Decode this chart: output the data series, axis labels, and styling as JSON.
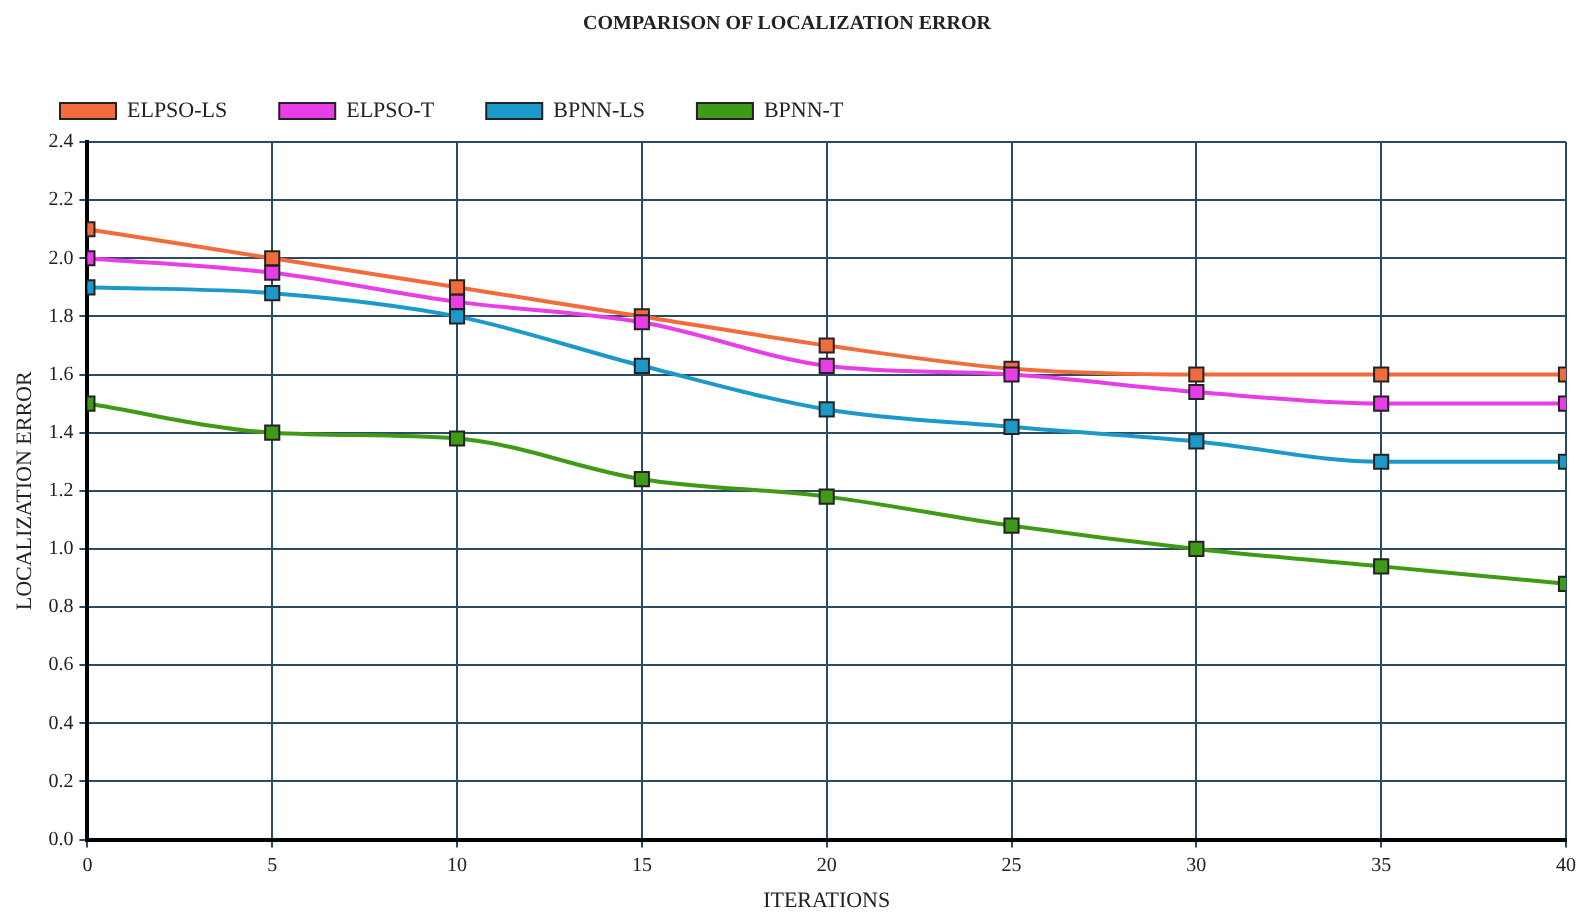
{
  "chart_data": {
    "type": "line",
    "title": "COMPARISON OF LOCALIZATION ERROR",
    "xlabel": "ITERATIONS",
    "ylabel": "LOCALIZATION ERROR",
    "x": [
      0,
      5,
      10,
      15,
      20,
      25,
      30,
      35,
      40
    ],
    "series": [
      {
        "name": "ELPSO-LS",
        "color": "#f26b3a",
        "values": [
          2.1,
          2.0,
          1.9,
          1.8,
          1.7,
          1.62,
          1.6,
          1.6,
          1.6
        ]
      },
      {
        "name": "ELPSO-T",
        "color": "#e83de8",
        "values": [
          2.0,
          1.95,
          1.85,
          1.78,
          1.63,
          1.6,
          1.54,
          1.5,
          1.5
        ]
      },
      {
        "name": "BPNN-LS",
        "color": "#1b9ac9",
        "values": [
          1.9,
          1.88,
          1.8,
          1.63,
          1.48,
          1.42,
          1.37,
          1.3,
          1.3
        ]
      },
      {
        "name": "BPNN-T",
        "color": "#3f9a16",
        "values": [
          1.5,
          1.4,
          1.38,
          1.24,
          1.18,
          1.08,
          1.0,
          0.94,
          0.88
        ]
      }
    ],
    "xlim": [
      0,
      40
    ],
    "xticks": [
      0,
      5,
      10,
      15,
      20,
      25,
      30,
      35,
      40
    ],
    "ylim": [
      0,
      2.4
    ],
    "yticks": [
      {
        "value": 0,
        "label": "0.0"
      },
      {
        "value": 0.2,
        "label": "0.2"
      },
      {
        "value": 0.4,
        "label": "0.4"
      },
      {
        "value": 0.6,
        "label": "0.6"
      },
      {
        "value": 0.8,
        "label": "0.8"
      },
      {
        "value": 1,
        "label": "1.0"
      },
      {
        "value": 1.2,
        "label": "1.2"
      },
      {
        "value": 1.4,
        "label": "1.4"
      },
      {
        "value": 1.6,
        "label": "1.6"
      },
      {
        "value": 1.8,
        "label": "1.8"
      },
      {
        "value": 2,
        "label": "2.0"
      },
      {
        "value": 2.2,
        "label": "2.2"
      },
      {
        "value": 2.4,
        "label": "2.4"
      }
    ],
    "grid": true,
    "legend": "top left",
    "marker": "square",
    "line_style": "solid"
  }
}
